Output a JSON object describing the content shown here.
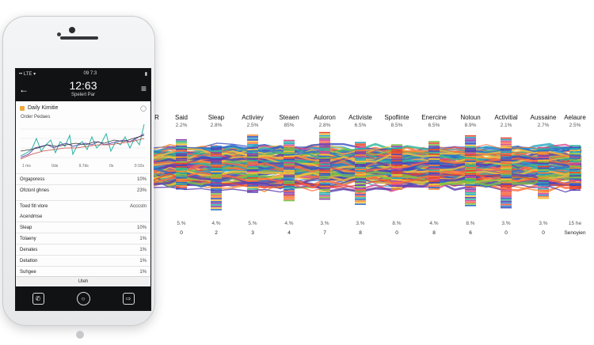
{
  "phone": {
    "status": {
      "left": "•• LTE ▾",
      "time": "09 7:3",
      "battery": "▮"
    },
    "header": {
      "clock": "12:63",
      "subtitle": "Spelert Par"
    },
    "card_title": "Daily Kimitie",
    "chart_label": "Order Pedaes",
    "ticks": [
      "1 ms",
      "0ds",
      "9.7ds",
      "0s",
      "0:10s"
    ],
    "rows": [
      {
        "label": "Orgaporess",
        "value": "10%"
      },
      {
        "label": "Ofctonl ghnes",
        "value": "23%"
      },
      {
        "label": "Toed fitl vlore",
        "value": "Acccstn"
      },
      {
        "label": "Acendmse",
        "value": ""
      },
      {
        "label": "Sleap",
        "value": "10%"
      },
      {
        "label": "Tolaeny",
        "value": "1%"
      },
      {
        "label": "Denates",
        "value": "1%"
      },
      {
        "label": "Detatlon",
        "value": "1%"
      },
      {
        "label": "Suhgee",
        "value": "1%"
      }
    ],
    "footer": "Uteh"
  },
  "columns": [
    {
      "header": "R",
      "top": "",
      "pct": "",
      "num": ""
    },
    {
      "header": "Said",
      "top": "2.2%",
      "pct": "5.%",
      "num": "0"
    },
    {
      "header": "Sleap",
      "top": "2.8%",
      "pct": "4.%",
      "num": "2"
    },
    {
      "header": "Activiey",
      "top": "2.5%",
      "pct": "5.%",
      "num": "3"
    },
    {
      "header": "Steaen",
      "top": "85%",
      "pct": "4.%",
      "num": "4"
    },
    {
      "header": "Auloron",
      "top": "2.8%",
      "pct": "3.%",
      "num": "7"
    },
    {
      "header": "Activiste",
      "top": "6.5%",
      "pct": "3.%",
      "num": "8"
    },
    {
      "header": "Spoflinte",
      "top": "8.5%",
      "pct": "8.%",
      "num": "0"
    },
    {
      "header": "Enercine",
      "top": "6.5%",
      "pct": "4.%",
      "num": "8"
    },
    {
      "header": "Noloun",
      "top": "8.9%",
      "pct": "8.%",
      "num": "6"
    },
    {
      "header": "Activitial",
      "top": "2.1%",
      "pct": "3.%",
      "num": "0"
    },
    {
      "header": "Aussaine",
      "top": "2.7%",
      "pct": "3.%",
      "num": "0"
    },
    {
      "header": "Aelaure",
      "top": "2.5%",
      "pct": "15 he",
      "num": "Senoyien"
    }
  ]
}
